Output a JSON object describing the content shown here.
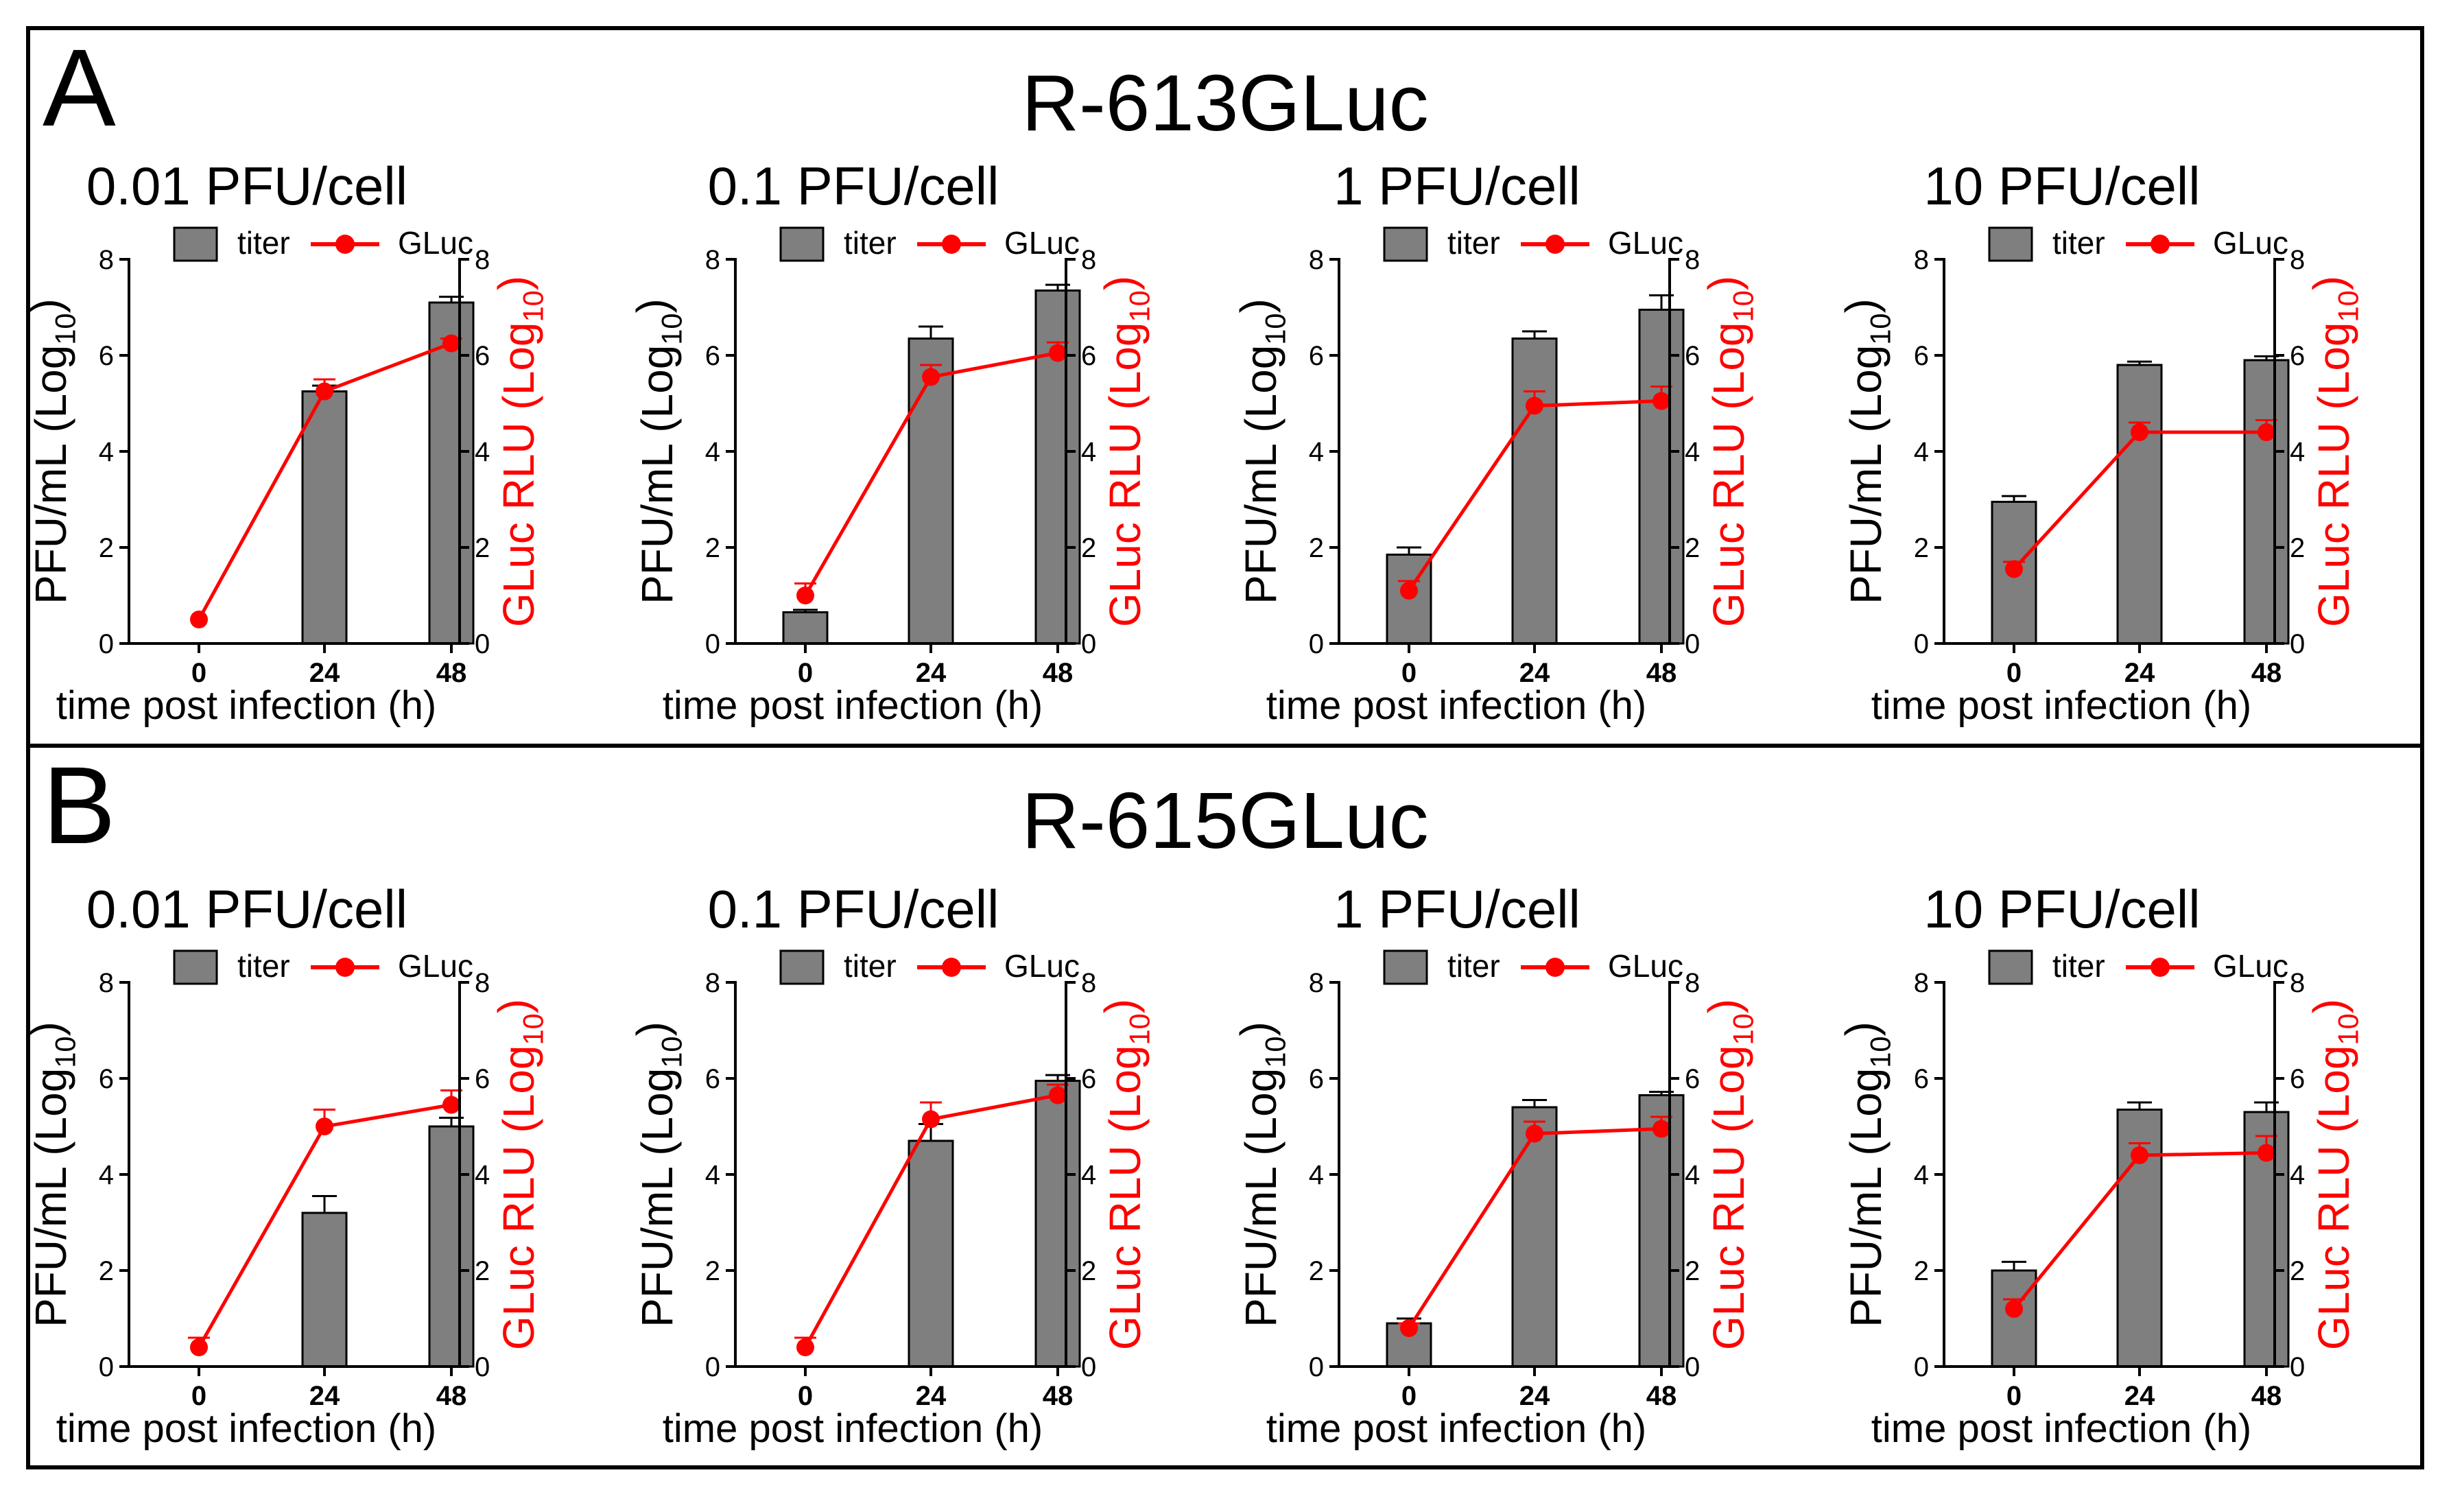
{
  "colors": {
    "bar": "#7f7f7f",
    "line": "#ff0000",
    "axis": "#000000",
    "right_axis": "#ff0000"
  },
  "panels": [
    {
      "letter": "A",
      "title": "R-613GLuc"
    },
    {
      "letter": "B",
      "title": "R-615GLuc"
    }
  ],
  "legend": {
    "titer": "titer",
    "gluc": "GLuc"
  },
  "chart_data": [
    {
      "id": "A1",
      "type": "bar+line",
      "title": "0.01 PFU/cell",
      "xlabel": "time post infection (h)",
      "ylabel_left": "PFU/mL (Log10)",
      "ylabel_right": "GLuc RLU (Log10)",
      "categories": [
        "0",
        "24",
        "48"
      ],
      "ylim": [
        0,
        8
      ],
      "yticks": [
        0,
        2,
        4,
        6,
        8
      ],
      "series": [
        {
          "name": "titer",
          "kind": "bar",
          "values": [
            0,
            5.25,
            7.1
          ],
          "errors": [
            0,
            0.12,
            0.12
          ]
        },
        {
          "name": "GLuc",
          "kind": "line",
          "values": [
            0.5,
            5.25,
            6.25
          ],
          "errors": [
            0,
            0.25,
            0.1
          ]
        }
      ]
    },
    {
      "id": "A2",
      "type": "bar+line",
      "title": "0.1 PFU/cell",
      "xlabel": "time post infection (h)",
      "ylabel_left": "PFU/mL (Log10)",
      "ylabel_right": "GLuc RLU (Log10)",
      "categories": [
        "0",
        "24",
        "48"
      ],
      "ylim": [
        0,
        8
      ],
      "yticks": [
        0,
        2,
        4,
        6,
        8
      ],
      "series": [
        {
          "name": "titer",
          "kind": "bar",
          "values": [
            0.65,
            6.35,
            7.35
          ],
          "errors": [
            0.05,
            0.25,
            0.12
          ]
        },
        {
          "name": "GLuc",
          "kind": "line",
          "values": [
            1.0,
            5.55,
            6.05
          ],
          "errors": [
            0.25,
            0.25,
            0.22
          ]
        }
      ]
    },
    {
      "id": "A3",
      "type": "bar+line",
      "title": "1 PFU/cell",
      "xlabel": "time post infection (h)",
      "ylabel_left": "PFU/mL (Log10)",
      "ylabel_right": "GLuc RLU (Log10)",
      "categories": [
        "0",
        "24",
        "48"
      ],
      "ylim": [
        0,
        8
      ],
      "yticks": [
        0,
        2,
        4,
        6,
        8
      ],
      "series": [
        {
          "name": "titer",
          "kind": "bar",
          "values": [
            1.85,
            6.35,
            6.95
          ],
          "errors": [
            0.15,
            0.15,
            0.3
          ]
        },
        {
          "name": "GLuc",
          "kind": "line",
          "values": [
            1.1,
            4.95,
            5.05
          ],
          "errors": [
            0.2,
            0.3,
            0.3
          ]
        }
      ]
    },
    {
      "id": "A4",
      "type": "bar+line",
      "title": "10 PFU/cell",
      "xlabel": "time post infection (h)",
      "ylabel_left": "PFU/mL (Log10)",
      "ylabel_right": "GLuc RLU (Log10)",
      "categories": [
        "0",
        "24",
        "48"
      ],
      "ylim": [
        0,
        8
      ],
      "yticks": [
        0,
        2,
        4,
        6,
        8
      ],
      "series": [
        {
          "name": "titer",
          "kind": "bar",
          "values": [
            2.95,
            5.8,
            5.9
          ],
          "errors": [
            0.12,
            0.07,
            0.08
          ]
        },
        {
          "name": "GLuc",
          "kind": "line",
          "values": [
            1.55,
            4.4,
            4.4
          ],
          "errors": [
            0.15,
            0.2,
            0.25
          ]
        }
      ]
    },
    {
      "id": "B1",
      "type": "bar+line",
      "title": "0.01 PFU/cell",
      "xlabel": "time post infection (h)",
      "ylabel_left": "PFU/mL (Log10)",
      "ylabel_right": "GLuc RLU (Log10)",
      "categories": [
        "0",
        "24",
        "48"
      ],
      "ylim": [
        0,
        8
      ],
      "yticks": [
        0,
        2,
        4,
        6,
        8
      ],
      "series": [
        {
          "name": "titer",
          "kind": "bar",
          "values": [
            0,
            3.2,
            5.0
          ],
          "errors": [
            0,
            0.35,
            0.18
          ]
        },
        {
          "name": "GLuc",
          "kind": "line",
          "values": [
            0.4,
            5.0,
            5.45
          ],
          "errors": [
            0.2,
            0.35,
            0.3
          ]
        }
      ]
    },
    {
      "id": "B2",
      "type": "bar+line",
      "title": "0.1 PFU/cell",
      "xlabel": "time post infection (h)",
      "ylabel_left": "PFU/mL (Log10)",
      "ylabel_right": "GLuc RLU (Log10)",
      "categories": [
        "0",
        "24",
        "48"
      ],
      "ylim": [
        0,
        8
      ],
      "yticks": [
        0,
        2,
        4,
        6,
        8
      ],
      "series": [
        {
          "name": "titer",
          "kind": "bar",
          "values": [
            0,
            4.7,
            5.95
          ],
          "errors": [
            0,
            0.35,
            0.12
          ]
        },
        {
          "name": "GLuc",
          "kind": "line",
          "values": [
            0.4,
            5.15,
            5.65
          ],
          "errors": [
            0.2,
            0.35,
            0.22
          ]
        }
      ]
    },
    {
      "id": "B3",
      "type": "bar+line",
      "title": "1 PFU/cell",
      "xlabel": "time post infection (h)",
      "ylabel_left": "PFU/mL (Log10)",
      "ylabel_right": "GLuc RLU (Log10)",
      "categories": [
        "0",
        "24",
        "48"
      ],
      "ylim": [
        0,
        8
      ],
      "yticks": [
        0,
        2,
        4,
        6,
        8
      ],
      "series": [
        {
          "name": "titer",
          "kind": "bar",
          "values": [
            0.9,
            5.4,
            5.65
          ],
          "errors": [
            0.1,
            0.15,
            0.07
          ]
        },
        {
          "name": "GLuc",
          "kind": "line",
          "values": [
            0.8,
            4.85,
            4.95
          ],
          "errors": [
            0.1,
            0.25,
            0.25
          ]
        }
      ]
    },
    {
      "id": "B4",
      "type": "bar+line",
      "title": "10 PFU/cell",
      "xlabel": "time post infection (h)",
      "ylabel_left": "PFU/mL (Log10)",
      "ylabel_right": "GLuc RLU (Log10)",
      "categories": [
        "0",
        "24",
        "48"
      ],
      "ylim": [
        0,
        8
      ],
      "yticks": [
        0,
        2,
        4,
        6,
        8
      ],
      "series": [
        {
          "name": "titer",
          "kind": "bar",
          "values": [
            2.0,
            5.35,
            5.3
          ],
          "errors": [
            0.18,
            0.15,
            0.2
          ]
        },
        {
          "name": "GLuc",
          "kind": "line",
          "values": [
            1.2,
            4.4,
            4.45
          ],
          "errors": [
            0.2,
            0.25,
            0.35
          ]
        }
      ]
    }
  ]
}
